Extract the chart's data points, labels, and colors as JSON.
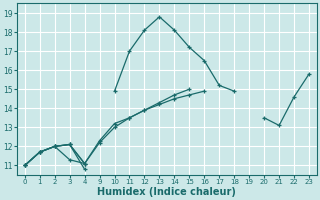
{
  "xlabel": "Humidex (Indice chaleur)",
  "background_color": "#cce8e8",
  "grid_color": "#ffffff",
  "line_color": "#1a6b6b",
  "ylim": [
    10.5,
    19.5
  ],
  "yticks": [
    11,
    12,
    13,
    14,
    15,
    16,
    17,
    18,
    19
  ],
  "hour_labels": [
    0,
    1,
    2,
    3,
    4,
    9,
    10,
    11,
    12,
    13,
    14,
    15,
    16,
    17,
    18,
    19,
    20,
    21,
    22,
    23
  ],
  "lines": [
    {
      "segments": [
        {
          "hours": [
            0,
            1,
            2,
            3,
            4
          ],
          "y": [
            11.0,
            11.7,
            12.0,
            11.3,
            11.1
          ]
        },
        {
          "hours": [
            10,
            11,
            12,
            13,
            14,
            15,
            16,
            17,
            18
          ],
          "y": [
            14.9,
            17.0,
            18.1,
            18.8,
            18.1,
            17.2,
            16.5,
            15.2,
            14.9
          ]
        },
        {
          "hours": [
            20,
            21,
            22,
            23
          ],
          "y": [
            13.5,
            13.1,
            14.6,
            15.8
          ]
        }
      ]
    },
    {
      "segments": [
        {
          "hours": [
            0,
            1,
            2,
            3,
            4,
            9,
            10,
            11,
            12,
            13,
            14,
            15,
            16
          ],
          "y": [
            11.0,
            11.7,
            12.0,
            12.1,
            11.1,
            12.2,
            13.0,
            13.5,
            13.9,
            14.2,
            14.5,
            14.7,
            14.9
          ]
        }
      ]
    },
    {
      "segments": [
        {
          "hours": [
            0,
            1,
            2,
            3,
            4,
            9,
            10,
            11,
            12,
            13,
            14,
            15
          ],
          "y": [
            11.0,
            11.7,
            12.0,
            12.1,
            11.1,
            12.3,
            13.2,
            13.5,
            13.9,
            14.3,
            14.7,
            15.0
          ]
        }
      ]
    },
    {
      "segments": [
        {
          "hours": [
            0,
            1,
            2,
            3,
            4
          ],
          "y": [
            11.0,
            11.7,
            12.0,
            12.1,
            10.8
          ]
        }
      ]
    }
  ]
}
